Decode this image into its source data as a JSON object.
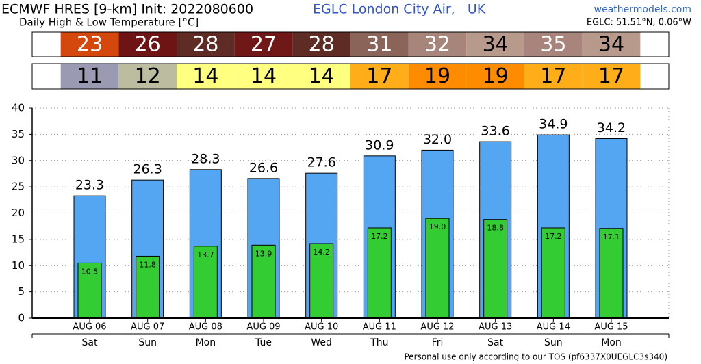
{
  "chart_data": {
    "type": "bar",
    "title": "ECMWF HRES [9-km] Init: 2022080600",
    "location": "EGLC London City Air,   UK",
    "source": "weathermodels.com",
    "coords": "EGLC: 51.51°N, 0.06°W",
    "subtitle": "Daily High & Low Temperature [°C]",
    "footer": "Personal use only according to our TOS (pf6337X0UEGLC3s340)",
    "categories": [
      "AUG 06",
      "AUG 07",
      "AUG 08",
      "AUG 09",
      "AUG 10",
      "AUG 11",
      "AUG 12",
      "AUG 13",
      "AUG 14",
      "AUG 15"
    ],
    "weekdays": [
      "Sat",
      "Sun",
      "Mon",
      "Tue",
      "Wed",
      "Thu",
      "Fri",
      "Sat",
      "Sun",
      "Mon"
    ],
    "series": [
      {
        "name": "High",
        "color": "#55a6f2",
        "values": [
          23.3,
          26.3,
          28.3,
          26.6,
          27.6,
          30.9,
          32.0,
          33.6,
          34.9,
          34.2
        ],
        "value_labels": [
          "23.3",
          "26.3",
          "28.3",
          "26.6",
          "27.6",
          "30.9",
          "32.0",
          "33.6",
          "34.9",
          "34.2"
        ]
      },
      {
        "name": "Low",
        "color": "#33cc33",
        "values": [
          10.5,
          11.8,
          13.7,
          13.9,
          14.2,
          17.2,
          19.0,
          18.8,
          17.2,
          17.1
        ],
        "value_labels": [
          "10.5",
          "11.8",
          "13.7",
          "13.9",
          "14.2",
          "17.2",
          "19.0",
          "18.8",
          "17.2",
          "17.1"
        ]
      }
    ],
    "strips": [
      {
        "values": [
          23,
          26,
          28,
          27,
          28,
          31,
          32,
          34,
          35,
          34
        ],
        "colors": [
          "#d4480e",
          "#6e1414",
          "#5e2b25",
          "#701818",
          "#5e2b25",
          "#8a6458",
          "#a8857a",
          "#b89a8c",
          "#a8847c",
          "#b89a8c"
        ]
      },
      {
        "values": [
          11,
          12,
          14,
          14,
          14,
          17,
          19,
          19,
          17,
          17
        ],
        "colors": [
          "#9a9ab2",
          "#bcbca0",
          "#ffff80",
          "#ffff80",
          "#ffff80",
          "#ffae1a",
          "#ff8c00",
          "#ff8c00",
          "#ffae1a",
          "#ffae1a"
        ]
      }
    ],
    "ylim": [
      0,
      40
    ],
    "yticks": [
      0,
      5,
      10,
      15,
      20,
      25,
      30,
      35,
      40
    ],
    "grid": true
  }
}
